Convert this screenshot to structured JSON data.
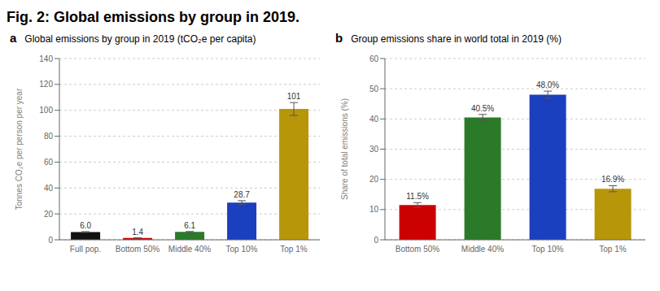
{
  "title": "Fig. 2: Global emissions by group in 2019.",
  "chart_data": [
    {
      "type": "bar",
      "title": "Global emissions by group in 2019 (tCO₂e per capita)",
      "annotations": [
        "a"
      ],
      "categories": [
        "Full pop.",
        "Bottom 50%",
        "Middle 40%",
        "Top 10%",
        "Top 1%"
      ],
      "values": [
        6.0,
        1.4,
        6.1,
        28.7,
        101
      ],
      "value_labels": [
        "6.0",
        "1.4",
        "6.1",
        "28.7",
        "101"
      ],
      "errors": [
        0.3,
        0.1,
        0.3,
        1.5,
        5.0
      ],
      "colors": [
        "#111111",
        "#cc0000",
        "#2a7a2a",
        "#1a3fbf",
        "#b8960a"
      ],
      "y_label": "Tonnes CO₂e per person per year",
      "ylim": [
        0,
        140
      ],
      "yticks": [
        0,
        20,
        40,
        60,
        80,
        100,
        120,
        140
      ],
      "grid": true,
      "data_labels": true
    },
    {
      "type": "bar",
      "title": "Group emissions share in world total in 2019 (%)",
      "annotations": [
        "b"
      ],
      "categories": [
        "Bottom 50%",
        "Middle 40%",
        "Top 10%",
        "Top 1%"
      ],
      "values": [
        11.5,
        40.5,
        48.0,
        16.9
      ],
      "value_labels": [
        "11.5%",
        "40.5%",
        "48.0%",
        "16.9%"
      ],
      "errors": [
        0.8,
        1.0,
        1.2,
        1.0
      ],
      "colors": [
        "#cc0000",
        "#2a7a2a",
        "#1a3fbf",
        "#b8960a"
      ],
      "y_label": "Share of total emissions (%)",
      "ylim": [
        0,
        60
      ],
      "yticks": [
        0,
        10,
        20,
        30,
        40,
        50,
        60
      ],
      "grid": true,
      "data_labels": true
    }
  ]
}
